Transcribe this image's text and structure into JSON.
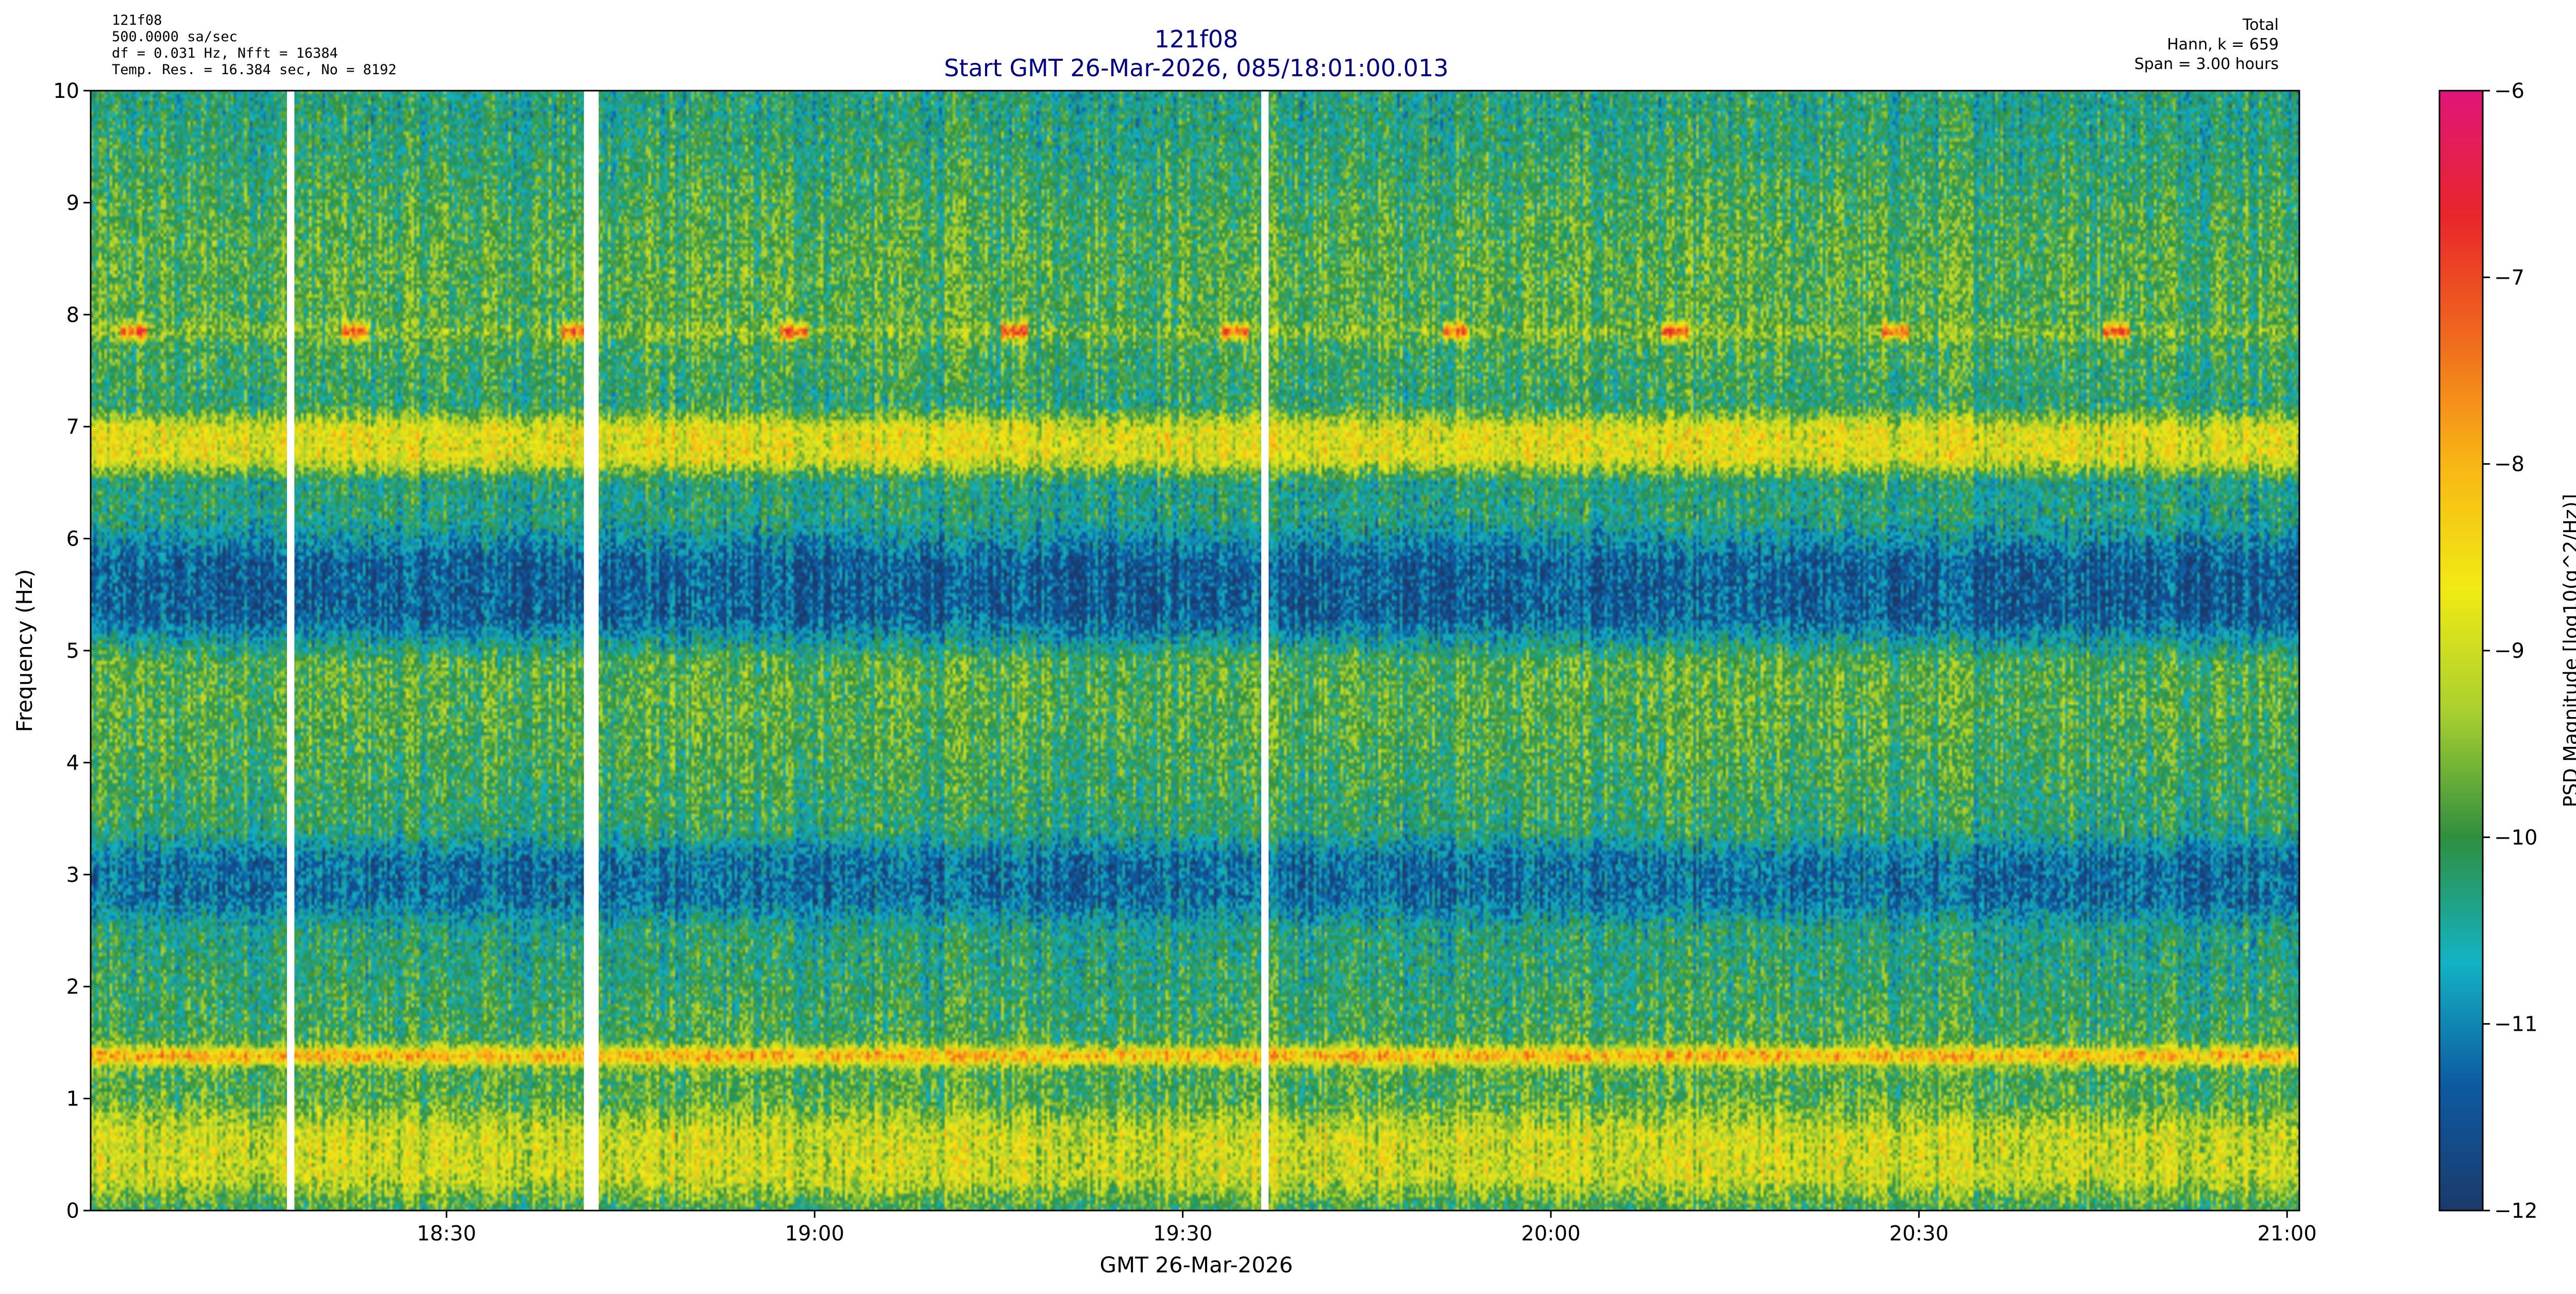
{
  "header": {
    "left_lines": [
      "121f08",
      "500.0000 sa/sec",
      "df = 0.031 Hz,  Nfft = 16384",
      "Temp. Res. = 16.384 sec, No = 8192"
    ],
    "title": "121f08",
    "subtitle": "Start GMT 26-Mar-2026, 085/18:01:00.013",
    "right_lines": [
      "Total",
      "Hann, k = 659",
      "Span = 3.00 hours"
    ]
  },
  "colors": {
    "title": "#000080",
    "colormap": [
      "#1b3a6b",
      "#0d5aa1",
      "#13b3c4",
      "#2f8f3f",
      "#a8cf2f",
      "#f1ea14",
      "#f8b614",
      "#f06a1e",
      "#e8262a",
      "#e0157a"
    ],
    "gap": "#ffffff"
  },
  "chart_data": {
    "type": "heatmap",
    "title": "121f08",
    "subtitle": "Start GMT 26-Mar-2026, 085/18:01:00.013",
    "xlabel": "GMT 26-Mar-2026",
    "ylabel": "Frequency (Hz)",
    "x_start": "18:01:00",
    "x_end": "21:01:00",
    "xlim_minutes_after_1800": [
      1.0,
      181.0
    ],
    "x_ticks": [
      "18:30",
      "19:00",
      "19:30",
      "20:00",
      "20:30",
      "21:00"
    ],
    "x_tick_minutes_after_1800": [
      30,
      60,
      90,
      120,
      150,
      180
    ],
    "ylim": [
      0,
      10
    ],
    "y_ticks": [
      "0",
      "1",
      "2",
      "3",
      "4",
      "5",
      "6",
      "7",
      "8",
      "9",
      "10"
    ],
    "colorbar": {
      "label": "PSD Magnitude [log10(g^2/Hz)]",
      "range": [
        -12,
        -6
      ],
      "ticks": [
        "-12",
        "-11",
        "-10",
        "-9",
        "-8",
        "-7",
        "-6"
      ]
    },
    "data_gaps_minutes_after_1800": [
      [
        17.0,
        17.6
      ],
      [
        41.2,
        42.4
      ],
      [
        96.4,
        97.0
      ]
    ],
    "features": [
      {
        "description": "persistent narrow band",
        "freq_hz": 1.38,
        "level": -8.0
      },
      {
        "description": "broad band",
        "freq_hz": [
          6.5,
          7.2
        ],
        "level": -8.8
      },
      {
        "description": "quiet region",
        "freq_hz": [
          4.9,
          6.2
        ],
        "level": -11.4
      },
      {
        "description": "quiet region",
        "freq_hz": [
          2.5,
          3.4
        ],
        "level": -11.2
      },
      {
        "description": "low frequency energy",
        "freq_hz": [
          0.0,
          1.0
        ],
        "level": -9.0
      },
      {
        "description": "intermittent tone",
        "freq_hz": 7.85,
        "level": -7.2
      }
    ]
  }
}
